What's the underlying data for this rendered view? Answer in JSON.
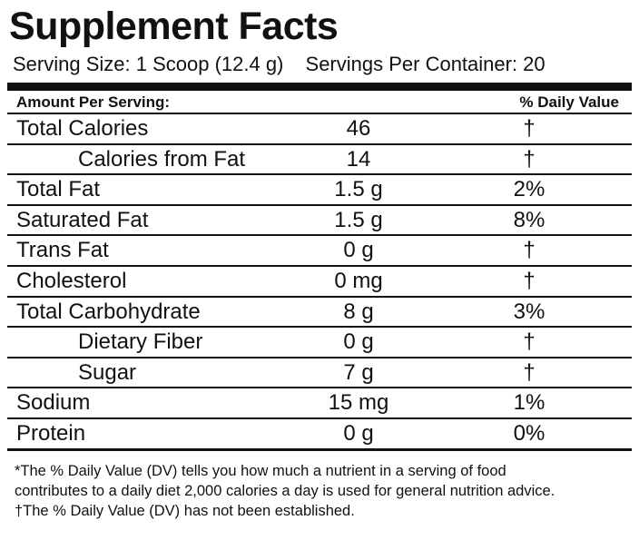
{
  "panel": {
    "title": "Supplement Facts",
    "serving_size": "Serving Size: 1 Scoop (12.4 g)",
    "servings_per_container": "Servings Per Container: 20"
  },
  "table": {
    "header_amount": "Amount Per Serving:",
    "header_dv": "% Daily Value",
    "rows": [
      {
        "name": "Total Calories",
        "amount": "46",
        "dv": "†",
        "indent": false
      },
      {
        "name": "Calories from Fat",
        "amount": "14",
        "dv": "†",
        "indent": true
      },
      {
        "name": "Total Fat",
        "amount": "1.5 g",
        "dv": "2%",
        "indent": false
      },
      {
        "name": "Saturated Fat",
        "amount": "1.5 g",
        "dv": "8%",
        "indent": false
      },
      {
        "name": "Trans Fat",
        "amount": "0 g",
        "dv": "†",
        "indent": false
      },
      {
        "name": "Cholesterol",
        "amount": "0 mg",
        "dv": "†",
        "indent": false
      },
      {
        "name": "Total Carbohydrate",
        "amount": "8 g",
        "dv": "3%",
        "indent": false
      },
      {
        "name": "Dietary Fiber",
        "amount": "0 g",
        "dv": "†",
        "indent": true
      },
      {
        "name": "Sugar",
        "amount": "7 g",
        "dv": "†",
        "indent": true
      },
      {
        "name": "Sodium",
        "amount": "15 mg",
        "dv": "1%",
        "indent": false
      },
      {
        "name": "Protein",
        "amount": "0 g",
        "dv": "0%",
        "indent": false
      }
    ]
  },
  "footnotes": {
    "line1": "*The % Daily Value (DV) tells you how much a nutrient in a serving of food",
    "line2": "contributes to a daily diet 2,000 calories a day is used for general nutrition advice.",
    "line3": "†The % Daily Value (DV) has not been established."
  }
}
